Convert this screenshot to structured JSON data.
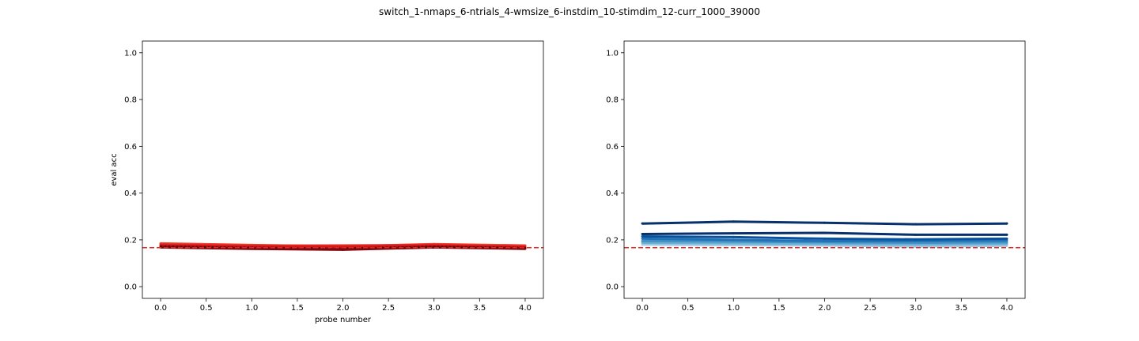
{
  "figure": {
    "title": "switch_1-nmaps_6-ntrials_4-wmsize_6-instdim_10-stimdim_12-curr_1000_39000"
  },
  "chart_data": [
    {
      "type": "line",
      "title": "",
      "xlabel": "probe number",
      "ylabel": "eval acc",
      "xlim": [
        -0.2,
        4.2
      ],
      "ylim": [
        -0.05,
        1.05
      ],
      "xticks": [
        0.0,
        0.5,
        1.0,
        1.5,
        2.0,
        2.5,
        3.0,
        3.5,
        4.0
      ],
      "yticks": [
        0.0,
        0.2,
        0.4,
        0.6,
        0.8,
        1.0
      ],
      "grid": false,
      "legend": "none",
      "reference_line": {
        "y": 0.1667,
        "color": "#e8251f",
        "style": "dashed"
      },
      "x": [
        0,
        1,
        2,
        3,
        4
      ],
      "series": [
        {
          "values": [
            0.185,
            0.178,
            0.172,
            0.182,
            0.176
          ],
          "color": "#f4432f"
        },
        {
          "values": [
            0.18,
            0.175,
            0.176,
            0.178,
            0.172
          ],
          "color": "#e8251f"
        },
        {
          "values": [
            0.176,
            0.17,
            0.168,
            0.175,
            0.168
          ],
          "color": "#cb181d"
        },
        {
          "values": [
            0.172,
            0.165,
            0.162,
            0.17,
            0.165
          ],
          "color": "#a50f15"
        },
        {
          "values": [
            0.168,
            0.162,
            0.158,
            0.168,
            0.162
          ],
          "color": "#7f0810"
        },
        {
          "values": [
            0.173,
            0.168,
            0.165,
            0.172,
            0.167
          ],
          "color": "#3a0a0a",
          "dashed": true
        }
      ]
    },
    {
      "type": "line",
      "title": "",
      "xlabel": "",
      "ylabel": "",
      "xlim": [
        -0.2,
        4.2
      ],
      "ylim": [
        -0.05,
        1.05
      ],
      "xticks": [
        0.0,
        0.5,
        1.0,
        1.5,
        2.0,
        2.5,
        3.0,
        3.5,
        4.0
      ],
      "yticks": [
        0.0,
        0.2,
        0.4,
        0.6,
        0.8,
        1.0
      ],
      "grid": false,
      "legend": "none",
      "reference_line": {
        "y": 0.1667,
        "color": "#e8251f",
        "style": "dashed"
      },
      "x": [
        0,
        1,
        2,
        3,
        4
      ],
      "series": [
        {
          "values": [
            0.18,
            0.178,
            0.176,
            0.172,
            0.175
          ],
          "color": "#9ecae1"
        },
        {
          "values": [
            0.188,
            0.186,
            0.183,
            0.18,
            0.183
          ],
          "color": "#6baed6"
        },
        {
          "values": [
            0.195,
            0.193,
            0.19,
            0.188,
            0.19
          ],
          "color": "#4292c6"
        },
        {
          "values": [
            0.205,
            0.2,
            0.195,
            0.195,
            0.198
          ],
          "color": "#2171b5"
        },
        {
          "values": [
            0.215,
            0.212,
            0.205,
            0.202,
            0.205
          ],
          "color": "#08519c"
        },
        {
          "values": [
            0.225,
            0.228,
            0.23,
            0.222,
            0.222
          ],
          "color": "#08306b"
        },
        {
          "values": [
            0.27,
            0.278,
            0.273,
            0.267,
            0.27
          ],
          "color": "#08306b"
        }
      ]
    }
  ]
}
